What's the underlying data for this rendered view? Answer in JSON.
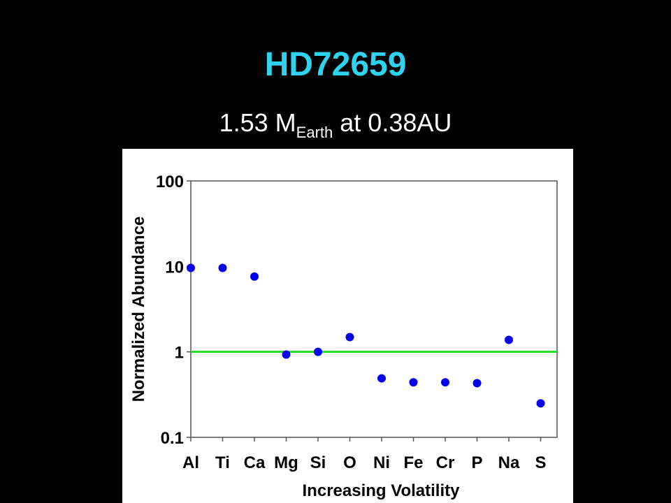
{
  "chart_data": {
    "type": "scatter",
    "title": "HD72659",
    "subtitle": {
      "main": "1.53 M",
      "subscript": "Earth",
      "rest": "at 0.38AU"
    },
    "x_label": "Increasing Volatility",
    "y_label": "Normalized Abundance",
    "categories": [
      "Al",
      "Ti",
      "Ca",
      "Mg",
      "Si",
      "O",
      "Ni",
      "Fe",
      "Cr",
      "P",
      "Na",
      "S"
    ],
    "values": [
      9.6,
      9.6,
      7.6,
      0.93,
      1.0,
      1.49,
      0.49,
      0.44,
      0.44,
      0.43,
      1.38,
      0.25
    ],
    "color": "#0000ee",
    "ylim": [
      0.1,
      100
    ],
    "yticks": [
      0.1,
      1,
      10,
      100
    ],
    "log_y": true,
    "reference_line": {
      "value": 1,
      "color": "#22dd22"
    }
  }
}
